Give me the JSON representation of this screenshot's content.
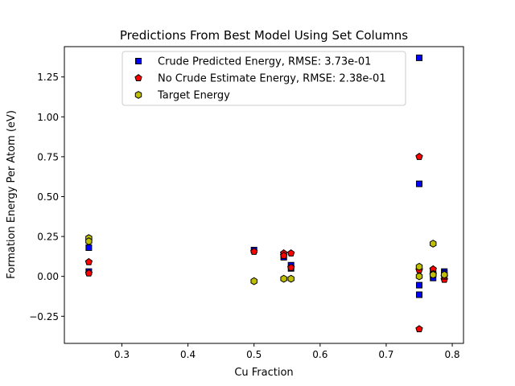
{
  "chart_data": {
    "type": "scatter",
    "title": "Predictions From Best Model Using Set Columns",
    "xlabel": "Cu Fraction",
    "ylabel": "Formation Energy Per Atom (eV)",
    "xlim": [
      0.213,
      0.817
    ],
    "ylim": [
      -0.42,
      1.44
    ],
    "xticks": [
      0.3,
      0.4,
      0.5,
      0.6,
      0.7,
      0.8
    ],
    "xtick_labels": [
      "0.3",
      "0.4",
      "0.5",
      "0.6",
      "0.7",
      "0.8"
    ],
    "yticks": [
      -0.25,
      0.0,
      0.25,
      0.5,
      0.75,
      1.0,
      1.25
    ],
    "ytick_labels": [
      "−0.25",
      "0.00",
      "0.25",
      "0.50",
      "0.75",
      "1.00",
      "1.25"
    ],
    "grid": false,
    "legend_position": "top-center",
    "series": [
      {
        "name": "Crude Predicted Energy, RMSE: 3.73e-01",
        "marker": "square",
        "color": "#0000ff",
        "points": [
          [
            0.25,
            0.18
          ],
          [
            0.25,
            0.03
          ],
          [
            0.5,
            0.165
          ],
          [
            0.545,
            0.125
          ],
          [
            0.545,
            0.12
          ],
          [
            0.556,
            0.07
          ],
          [
            0.556,
            0.05
          ],
          [
            0.75,
            1.37
          ],
          [
            0.75,
            0.58
          ],
          [
            0.75,
            -0.055
          ],
          [
            0.75,
            -0.115
          ],
          [
            0.771,
            -0.01
          ],
          [
            0.771,
            0.025
          ],
          [
            0.788,
            0.03
          ],
          [
            0.788,
            0.02
          ]
        ]
      },
      {
        "name": "No Crude Estimate Energy, RMSE: 2.38e-01",
        "marker": "pentagon",
        "color": "#ff0000",
        "points": [
          [
            0.25,
            0.09
          ],
          [
            0.25,
            0.02
          ],
          [
            0.5,
            0.155
          ],
          [
            0.545,
            0.145
          ],
          [
            0.545,
            0.13
          ],
          [
            0.556,
            0.145
          ],
          [
            0.556,
            0.055
          ],
          [
            0.75,
            0.75
          ],
          [
            0.75,
            0.04
          ],
          [
            0.75,
            -0.33
          ],
          [
            0.771,
            0.045
          ],
          [
            0.771,
            0.01
          ],
          [
            0.788,
            -0.02
          ],
          [
            0.788,
            0.0
          ]
        ]
      },
      {
        "name": "Target Energy",
        "marker": "hexagon",
        "color": "#bfbf00",
        "points": [
          [
            0.25,
            0.24
          ],
          [
            0.25,
            0.22
          ],
          [
            0.5,
            -0.03
          ],
          [
            0.545,
            -0.015
          ],
          [
            0.556,
            -0.015
          ],
          [
            0.75,
            0.06
          ],
          [
            0.75,
            0.0
          ],
          [
            0.771,
            0.205
          ],
          [
            0.771,
            0.015
          ],
          [
            0.771,
            0.01
          ],
          [
            0.788,
            0.01
          ]
        ]
      }
    ]
  }
}
